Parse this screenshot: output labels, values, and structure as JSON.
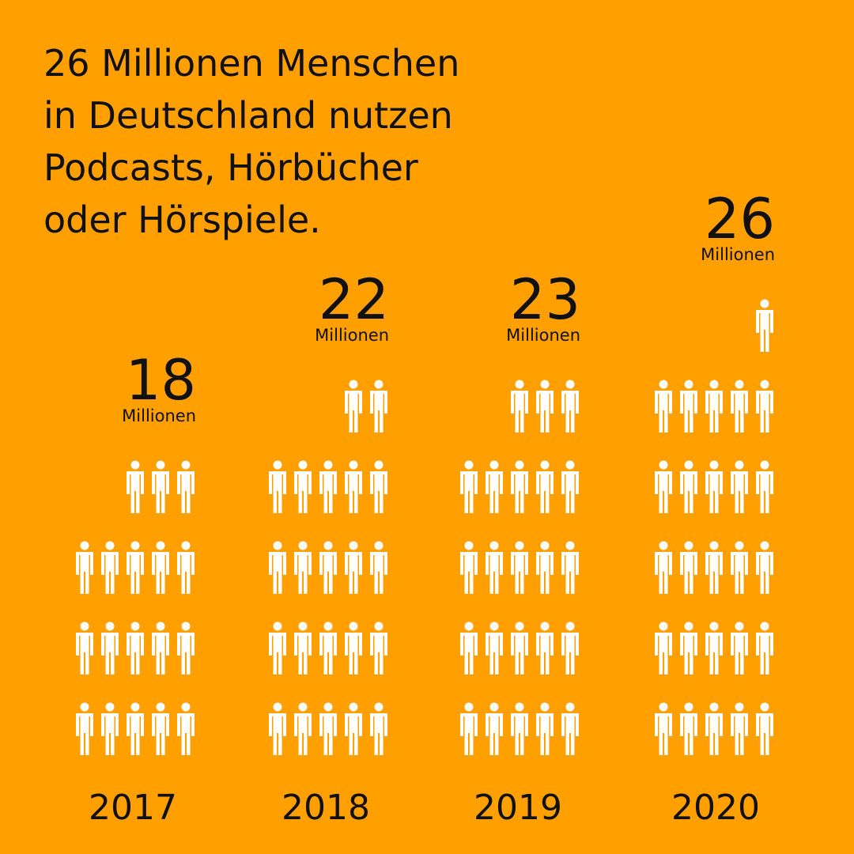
{
  "colors": {
    "background": "#FFA000",
    "figure": "#FFFFFF",
    "text": "#111111"
  },
  "headline": [
    "26 Millionen Menschen",
    "in Deutschland nutzen",
    "Podcasts, Hörbücher",
    "oder Hörspiele."
  ],
  "chart_data": {
    "type": "bar",
    "unit_label": "Millionen",
    "categories": [
      "2017",
      "2018",
      "2019",
      "2020"
    ],
    "values": [
      18,
      22,
      23,
      26
    ],
    "value_labels": [
      "18",
      "22",
      "23",
      "26"
    ],
    "icon": "person-icon",
    "per_row": 5
  }
}
